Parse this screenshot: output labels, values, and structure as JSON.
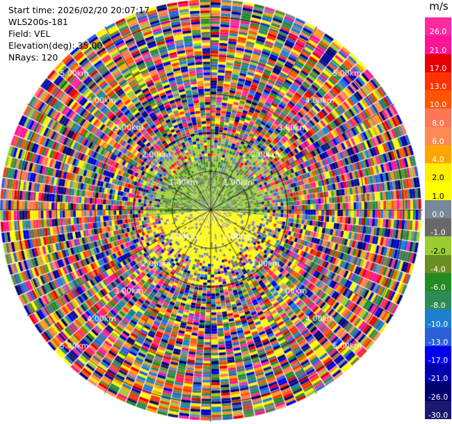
{
  "header": {
    "start_time": "Start time: 2026/02/20 20:07:17",
    "instrument": "WLS200s-181",
    "field": "Field: VEL",
    "elevation": "Elevation(deg): 35.00",
    "nrays": "NRays: 120"
  },
  "chart_data": {
    "type": "heatmap",
    "projection": "polar-ppi",
    "n_rays": 120,
    "range_rings_km": [
      1.0,
      2.0,
      3.0,
      4.0,
      5.0
    ],
    "ring_labels": {
      "1": "1.00km",
      "2": "2.00km",
      "3": "3.00km",
      "4": "4.00km",
      "5": "5.00km"
    },
    "max_range_km": 5.5,
    "colorbar": {
      "unit": "m/s",
      "ticks": [
        "26.0",
        "21.0",
        "17.0",
        "13.0",
        "10.0",
        "8.0",
        "6.0",
        "4.0",
        "2.0",
        "1.0",
        "0.0",
        "-1.0",
        "-2.0",
        "-4.0",
        "-6.0",
        "-8.0",
        "-10.0",
        "-13.0",
        "-17.0",
        "-21.0",
        "-26.0",
        "-30.0"
      ],
      "colors": [
        "#ff2aa0",
        "#ff1493",
        "#e60000",
        "#ff3300",
        "#ff5500",
        "#ff7755",
        "#ff8a55",
        "#ffa500",
        "#ffee00",
        "#ffff00",
        "#778899",
        "#696969",
        "#9acd32",
        "#6b8e23",
        "#228b22",
        "#2e8b57",
        "#1e7fd0",
        "#2a5fd8",
        "#0000ee",
        "#0000b0",
        "#00006e",
        "#191970"
      ]
    }
  }
}
